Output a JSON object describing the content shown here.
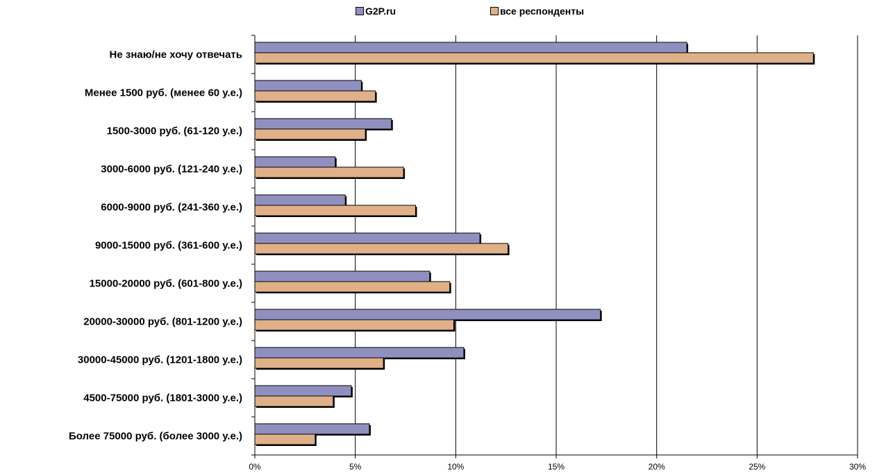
{
  "chart_data": {
    "type": "bar",
    "orientation": "horizontal",
    "categories": [
      "Не знаю/не хочу отвечать",
      "Менее 1500 руб. (менее 60 у.е.)",
      "1500-3000 руб. (61-120 у.е.)",
      "3000-6000 руб. (121-240 у.е.)",
      "6000-9000 руб. (241-360 у.е.)",
      "9000-15000 руб. (361-600 у.е.)",
      "15000-20000 руб. (601-800 у.е.)",
      "20000-30000 руб. (801-1200 у.е.)",
      "30000-45000 руб. (1201-1800 у.е.)",
      "4500-75000 руб. (1801-3000 у.е.)",
      "Более 75000 руб. (более 3000 у.е.)"
    ],
    "series": [
      {
        "name": "G2P.ru",
        "color": "#9090c0",
        "values": [
          21.5,
          5.3,
          6.8,
          4.0,
          4.5,
          11.2,
          8.7,
          17.2,
          10.4,
          4.8,
          5.7
        ]
      },
      {
        "name": "все респонденты",
        "color": "#e0b088",
        "values": [
          27.8,
          6.0,
          5.5,
          7.4,
          8.0,
          12.6,
          9.7,
          9.9,
          6.4,
          3.9,
          3.0
        ]
      }
    ],
    "xlim": [
      0,
      30
    ],
    "xticks": [
      "0%",
      "5%",
      "10%",
      "15%",
      "20%",
      "25%",
      "30%"
    ],
    "grid": "vertical",
    "legend_position": "top"
  }
}
